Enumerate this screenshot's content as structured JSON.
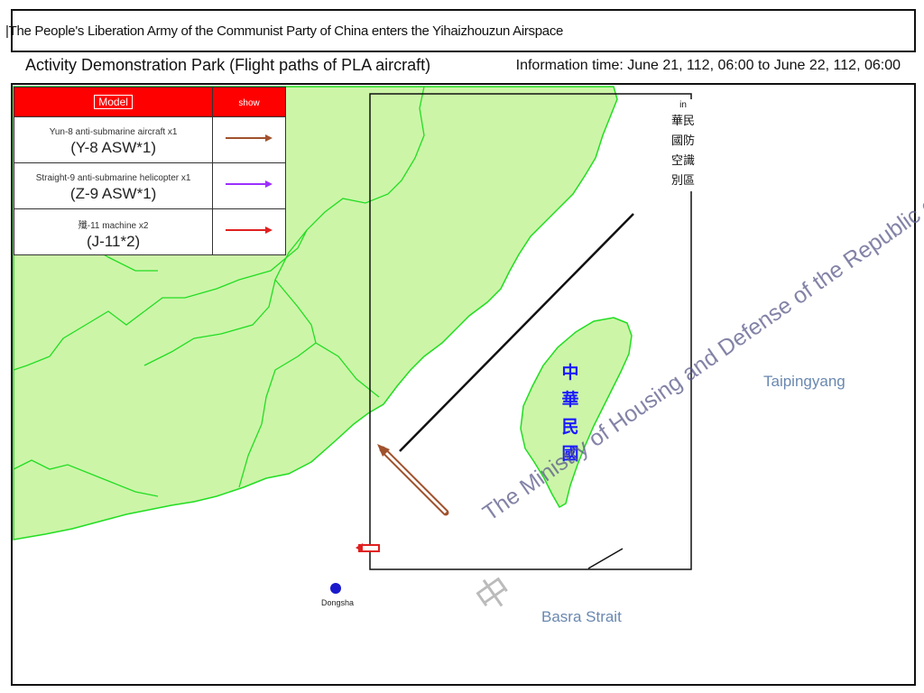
{
  "header": {
    "title": "|The People's Liberation Army of the Communist Party of China enters the Yihaizhouzun Airspace",
    "subtitle": "Activity Demonstration Park (Flight paths of PLA aircraft)",
    "info_time": "Information time: June 21, 112, 06:00 to June 22, 112, 06:00"
  },
  "legend": {
    "col_model": "Model",
    "col_show": "show",
    "rows": [
      {
        "name": "Yun-8 anti-submarine aircraft x1",
        "code": "(Y-8 ASW*1)",
        "color": "#a0522d"
      },
      {
        "name": "Straight-9 anti-submarine helicopter x1",
        "code": "(Z-9 ASW*1)",
        "color": "#9b30ff"
      },
      {
        "name": "殲-11 machine x2",
        "code": "(J-11*2)",
        "color": "#e02020"
      }
    ]
  },
  "map": {
    "adiz_in": "in",
    "adiz_chars": "華民國防空識別區",
    "taiwan_chars": "中華民國",
    "pacific": "Taipingyang",
    "strait": "Basra Strait",
    "dongsha": "Dongsha",
    "watermark": "The Ministry of Housing and Defense of the Republic of China.",
    "watermark_char": "中",
    "land_color": "#ccf5a8",
    "border_color": "#22dd22",
    "sea_color": "#ffffff"
  }
}
